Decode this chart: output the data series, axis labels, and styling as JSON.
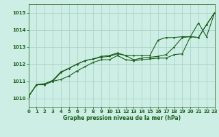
{
  "title": "Graphe pression niveau de la mer (hPa)",
  "bg_color": "#cceee4",
  "grid_color": "#aad4c8",
  "line_color": "#1a5c1a",
  "xlim": [
    0,
    23
  ],
  "ylim": [
    1009.5,
    1015.5
  ],
  "yticks": [
    1010,
    1011,
    1012,
    1013,
    1014,
    1015
  ],
  "xticks": [
    0,
    1,
    2,
    3,
    4,
    5,
    6,
    7,
    8,
    9,
    10,
    11,
    12,
    13,
    14,
    15,
    16,
    17,
    18,
    19,
    20,
    21,
    22,
    23
  ],
  "series1_x": [
    0,
    1,
    2,
    3,
    4,
    5,
    6,
    7,
    8,
    9,
    10,
    11,
    12,
    13,
    14,
    15,
    16,
    17,
    18,
    19,
    20,
    21,
    22,
    23
  ],
  "series1_y": [
    1010.1,
    1010.8,
    1010.8,
    1011.0,
    1011.1,
    1011.3,
    1011.6,
    1011.85,
    1012.1,
    1012.25,
    1012.25,
    1012.5,
    1012.25,
    1012.2,
    1012.25,
    1012.3,
    1012.35,
    1012.35,
    1012.55,
    1012.6,
    1013.6,
    1013.55,
    1014.3,
    1015.0
  ],
  "series2_x": [
    0,
    1,
    2,
    3,
    4,
    5,
    6,
    7,
    8,
    9,
    10,
    11,
    12,
    13,
    14,
    15,
    16,
    17,
    18,
    19,
    20,
    21,
    22,
    23
  ],
  "series2_y": [
    1010.1,
    1010.8,
    1010.8,
    1011.0,
    1011.5,
    1011.75,
    1012.0,
    1012.2,
    1012.3,
    1012.4,
    1012.45,
    1012.6,
    1012.5,
    1012.25,
    1012.35,
    1012.4,
    1012.45,
    1012.55,
    1013.0,
    1013.55,
    1013.6,
    1013.55,
    1014.3,
    1015.0
  ],
  "series3_x": [
    0,
    1,
    2,
    3,
    4,
    5,
    6,
    7,
    8,
    9,
    10,
    11,
    12,
    13,
    14,
    15,
    16,
    17,
    18,
    19,
    20,
    21,
    22,
    23
  ],
  "series3_y": [
    1010.1,
    1010.8,
    1010.85,
    1011.05,
    1011.55,
    1011.75,
    1012.0,
    1012.2,
    1012.3,
    1012.45,
    1012.5,
    1012.65,
    1012.5,
    1012.5,
    1012.5,
    1012.5,
    1013.4,
    1013.55,
    1013.55,
    1013.6,
    1013.6,
    1014.4,
    1013.6,
    1015.0
  ],
  "marker_size": 1.8,
  "line_width": 0.8,
  "tick_fontsize": 5.0,
  "xlabel_fontsize": 5.5
}
